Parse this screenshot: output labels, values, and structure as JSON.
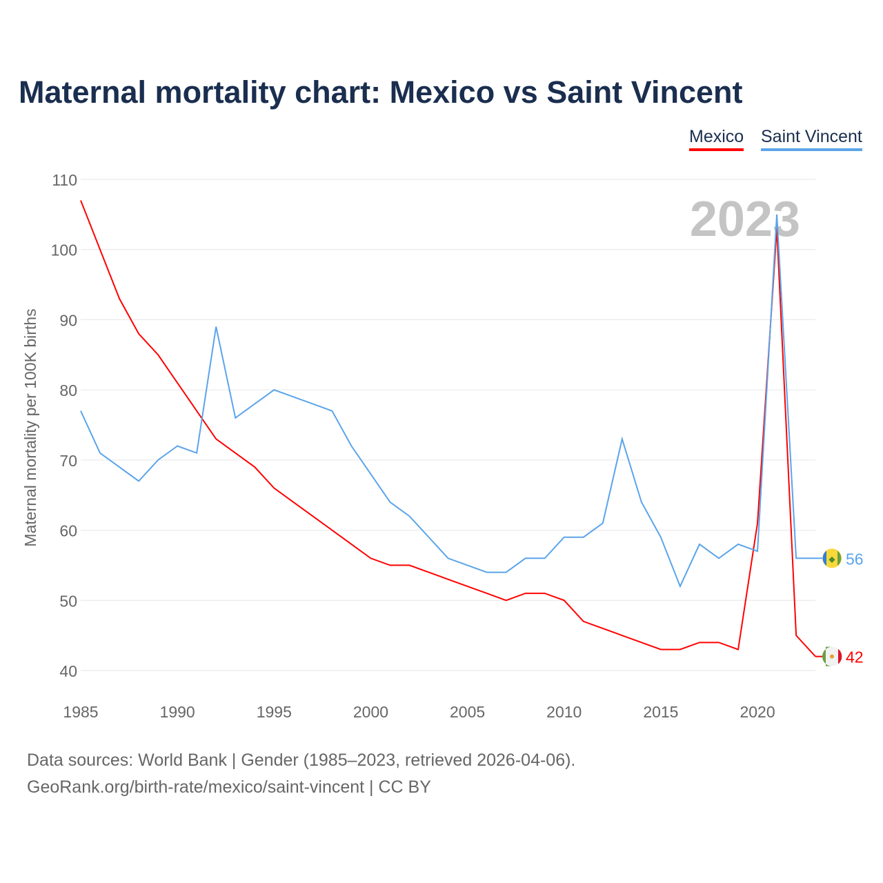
{
  "chart_data": {
    "type": "line",
    "title": "Maternal mortality chart: Mexico vs Saint Vincent",
    "xlabel": "",
    "ylabel": "Maternal mortality per 100K births",
    "ylim": [
      40,
      110
    ],
    "xlim": [
      1985,
      2023
    ],
    "yticks": [
      40,
      50,
      60,
      70,
      80,
      90,
      100,
      110
    ],
    "xticks": [
      1985,
      1990,
      1995,
      2000,
      2005,
      2010,
      2015,
      2020
    ],
    "year_label": "2023",
    "grid": true,
    "legend_position": "top-right",
    "x": [
      1985,
      1986,
      1987,
      1988,
      1989,
      1990,
      1991,
      1992,
      1993,
      1994,
      1995,
      1996,
      1997,
      1998,
      1999,
      2000,
      2001,
      2002,
      2003,
      2004,
      2005,
      2006,
      2007,
      2008,
      2009,
      2010,
      2011,
      2012,
      2013,
      2014,
      2015,
      2016,
      2017,
      2018,
      2019,
      2020,
      2021,
      2022,
      2023
    ],
    "series": [
      {
        "name": "Mexico",
        "color": "#ff0000",
        "end_label": "42",
        "values": [
          107,
          100,
          93,
          88,
          85,
          81,
          77,
          73,
          71,
          69,
          66,
          64,
          62,
          60,
          58,
          56,
          55,
          55,
          54,
          53,
          52,
          51,
          50,
          51,
          51,
          50,
          47,
          46,
          45,
          44,
          43,
          43,
          44,
          44,
          43,
          61,
          103,
          45,
          42
        ]
      },
      {
        "name": "Saint Vincent",
        "color": "#5aa4ea",
        "end_label": "56",
        "values": [
          77,
          71,
          69,
          67,
          70,
          72,
          71,
          89,
          76,
          78,
          80,
          79,
          78,
          77,
          72,
          68,
          64,
          62,
          59,
          56,
          55,
          54,
          54,
          56,
          56,
          59,
          59,
          61,
          73,
          64,
          59,
          52,
          58,
          56,
          58,
          57,
          105,
          56,
          56
        ]
      }
    ]
  },
  "footer": {
    "line1": "Data sources: World Bank | Gender (1985–2023, retrieved 2026-04-06).",
    "line2": "GeoRank.org/birth-rate/mexico/saint-vincent | CC BY"
  }
}
